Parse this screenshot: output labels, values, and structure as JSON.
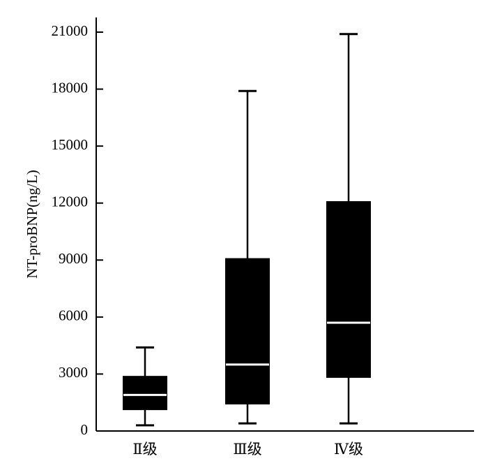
{
  "chart_data": {
    "type": "boxplot",
    "ylabel": "NT-proBNP(ng/L)",
    "ylim": [
      0,
      21500
    ],
    "yticks": [
      0,
      3000,
      6000,
      9000,
      12000,
      15000,
      18000,
      21000
    ],
    "ytick_labels": [
      "0",
      "3000",
      "6000",
      "9000",
      "12000",
      "15000",
      "18000",
      "21000"
    ],
    "categories": [
      "Ⅱ级",
      "Ⅲ级",
      "Ⅳ级"
    ],
    "boxes": [
      {
        "category": "Ⅱ级",
        "min": 300,
        "q1": 1100,
        "median": 1900,
        "q3": 2900,
        "max": 4400
      },
      {
        "category": "Ⅲ级",
        "min": 400,
        "q1": 1400,
        "median": 3500,
        "q3": 9100,
        "max": 17900
      },
      {
        "category": "Ⅳ级",
        "min": 400,
        "q1": 2800,
        "median": 5700,
        "q3": 12100,
        "max": 20900
      }
    ],
    "box_color": "#000000",
    "median_color": "#ffffff",
    "grid": false,
    "legend": "none"
  }
}
